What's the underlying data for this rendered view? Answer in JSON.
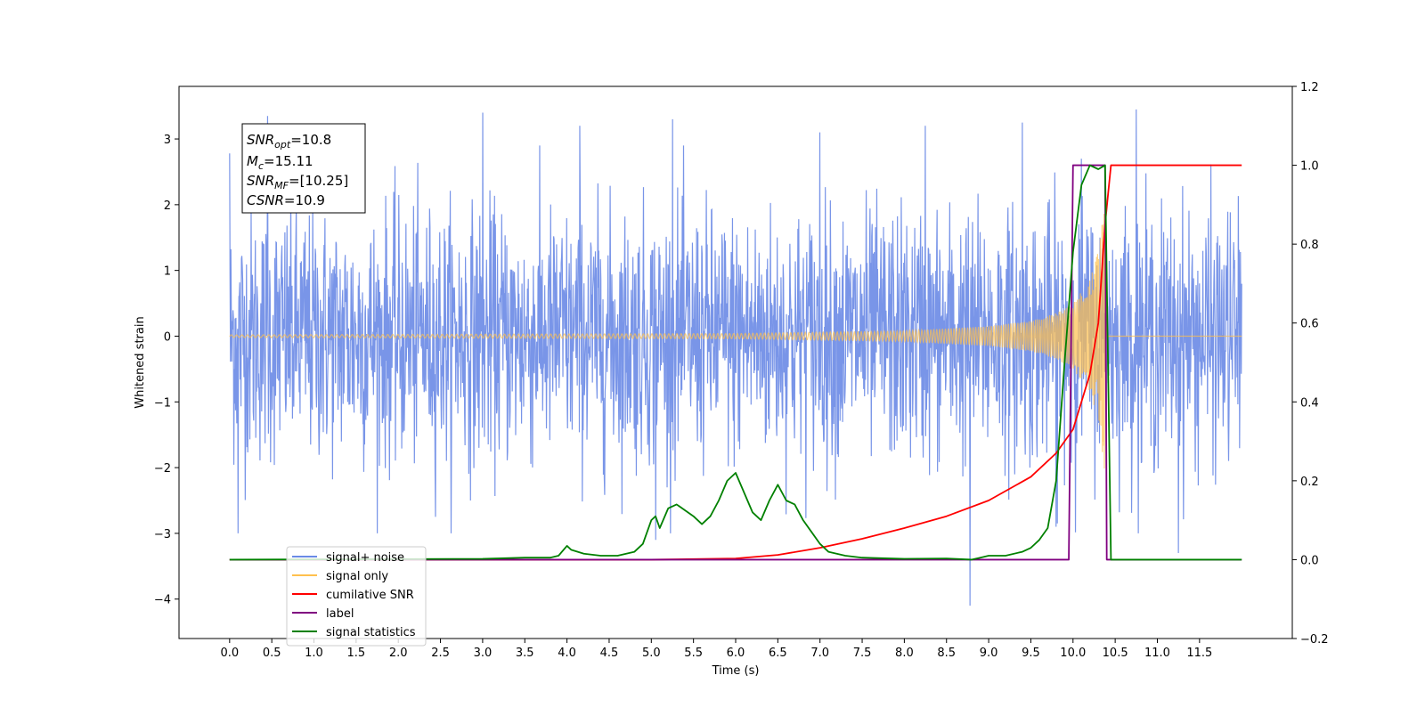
{
  "chart_data": {
    "type": "line",
    "xlabel": "Time (s)",
    "ylabel": "Whitened strain",
    "xlim": [
      -0.6,
      12.6
    ],
    "ylim": [
      -4.6,
      3.8
    ],
    "ylim_right": [
      -0.2,
      1.2
    ],
    "x_ticks": [
      "0.0",
      "0.5",
      "1.0",
      "1.5",
      "2.0",
      "2.5",
      "3.0",
      "3.5",
      "4.0",
      "4.5",
      "5.0",
      "5.5",
      "6.0",
      "6.5",
      "7.0",
      "7.5",
      "8.0",
      "8.5",
      "9.0",
      "9.5",
      "10.0",
      "10.5",
      "11.0",
      "11.5"
    ],
    "y_ticks_left": [
      "3",
      "2",
      "1",
      "0",
      "−1",
      "−2",
      "−3",
      "−4"
    ],
    "y_ticks_right": [
      "1.2",
      "1.0",
      "0.8",
      "0.6",
      "0.4",
      "0.2",
      "0.0",
      "−0.2"
    ],
    "grid": false,
    "legend_position": "lower-left",
    "legend": [
      {
        "label": "signal+ noise",
        "color": "#6a8ae6"
      },
      {
        "label": "signal only",
        "color": "#ffc04d"
      },
      {
        "label": "cumilative SNR",
        "color": "#ff0000"
      },
      {
        "label": "label",
        "color": "#800080"
      },
      {
        "label": "signal statistics",
        "color": "#008000"
      }
    ],
    "annotation": {
      "lines": [
        {
          "name": "SNR",
          "sub": "opt",
          "value": "=10.8"
        },
        {
          "name": "M",
          "sub": "c",
          "value": "=15.11"
        },
        {
          "name": "SNR",
          "sub": "MF",
          "value": "=[10.25]"
        },
        {
          "name": "CSNR",
          "sub": "",
          "value": "=10.9"
        }
      ]
    },
    "series": [
      {
        "name": "signal+ noise",
        "axis": "left",
        "color": "#6a8ae6",
        "kind": "noise",
        "x_range": [
          0.0,
          12.0
        ],
        "sigma": 0.95,
        "spikes": [
          [
            0.0,
            2.78
          ],
          [
            0.45,
            3.35
          ],
          [
            3.0,
            3.4
          ],
          [
            4.15,
            3.2
          ],
          [
            5.25,
            3.3
          ],
          [
            9.4,
            3.25
          ],
          [
            10.75,
            3.45
          ],
          [
            8.78,
            -4.1
          ],
          [
            11.25,
            -3.3
          ],
          [
            0.1,
            -3.0
          ],
          [
            5.05,
            -3.1
          ],
          [
            9.8,
            -2.9
          ],
          [
            10.1,
            2.7
          ],
          [
            7.0,
            3.1
          ],
          [
            8.25,
            3.2
          ]
        ]
      },
      {
        "name": "signal only",
        "axis": "left",
        "color": "#ffc04d",
        "kind": "chirp",
        "x_range": [
          0.0,
          12.0
        ],
        "merger": 10.4,
        "envelope": [
          [
            0.0,
            0.02
          ],
          [
            6.0,
            0.04
          ],
          [
            8.0,
            0.08
          ],
          [
            9.0,
            0.15
          ],
          [
            9.5,
            0.23
          ],
          [
            9.8,
            0.35
          ],
          [
            10.0,
            0.5
          ],
          [
            10.2,
            0.85
          ],
          [
            10.3,
            1.3
          ],
          [
            10.38,
            2.1
          ]
        ]
      },
      {
        "name": "cumilative SNR",
        "axis": "right",
        "color": "#ff0000",
        "x": [
          0.0,
          5.0,
          6.0,
          6.5,
          7.0,
          7.5,
          8.0,
          8.5,
          9.0,
          9.5,
          9.8,
          10.0,
          10.2,
          10.3,
          10.38,
          10.45,
          12.0
        ],
        "y": [
          0.0,
          0.0,
          0.003,
          0.012,
          0.03,
          0.053,
          0.08,
          0.11,
          0.15,
          0.21,
          0.27,
          0.33,
          0.47,
          0.6,
          0.85,
          1.0,
          1.0
        ]
      },
      {
        "name": "label",
        "axis": "right",
        "color": "#800080",
        "x": [
          0.0,
          9.95,
          10.0,
          10.38,
          10.4,
          12.0
        ],
        "y": [
          0.0,
          0.0,
          1.0,
          1.0,
          0.0,
          0.0
        ]
      },
      {
        "name": "signal statistics",
        "axis": "right",
        "color": "#008000",
        "x": [
          0.0,
          3.0,
          3.5,
          3.8,
          3.9,
          4.0,
          4.05,
          4.2,
          4.4,
          4.6,
          4.8,
          4.9,
          5.0,
          5.05,
          5.1,
          5.2,
          5.3,
          5.5,
          5.6,
          5.7,
          5.8,
          5.9,
          6.0,
          6.1,
          6.2,
          6.3,
          6.4,
          6.5,
          6.6,
          6.7,
          6.8,
          6.9,
          7.0,
          7.1,
          7.3,
          7.5,
          8.0,
          8.5,
          8.8,
          8.9,
          9.0,
          9.2,
          9.4,
          9.5,
          9.6,
          9.7,
          9.8,
          9.9,
          10.0,
          10.1,
          10.2,
          10.3,
          10.38,
          10.45,
          12.0
        ],
        "y": [
          0.0,
          0.002,
          0.005,
          0.005,
          0.01,
          0.035,
          0.025,
          0.015,
          0.01,
          0.01,
          0.02,
          0.04,
          0.1,
          0.11,
          0.08,
          0.13,
          0.14,
          0.11,
          0.09,
          0.11,
          0.15,
          0.2,
          0.22,
          0.17,
          0.12,
          0.1,
          0.15,
          0.19,
          0.15,
          0.14,
          0.1,
          0.07,
          0.04,
          0.02,
          0.01,
          0.005,
          0.002,
          0.003,
          0.0,
          0.005,
          0.01,
          0.01,
          0.02,
          0.03,
          0.05,
          0.08,
          0.2,
          0.5,
          0.78,
          0.95,
          1.0,
          0.99,
          1.0,
          0.0,
          0.0
        ]
      }
    ]
  }
}
